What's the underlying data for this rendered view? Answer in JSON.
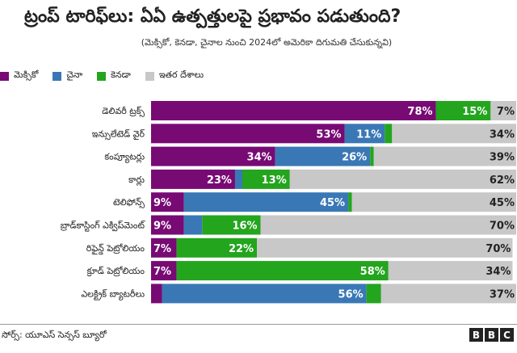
{
  "chart_data": {
    "type": "bar",
    "stacked": true,
    "orientation": "horizontal",
    "title": "ట్రంప్ టారిఫ్‌లు: ఏఏ ఉత్పత్తులపై ప్రభావం పడుతుంది?",
    "subtitle": "(మెక్సికో, కెనడా, చైనాల నుంచి 2024లో అమెరికా దిగుమతి చేసుకున్నవి)",
    "xlim": [
      0,
      100
    ],
    "categories": [
      "డెలివరీ ట్రక్స్",
      "ఇన్సులేటెడ్ వైర్",
      "కంప్యూటర్లు",
      "కార్లు",
      "టెలిఫోన్స్",
      "బ్రాడ్‌కాస్టింగ్ ఎక్విప్‌మెంట్",
      "రిఫైన్డ్ పెట్రోలియం",
      "క్రూడ్ పెట్రోలియం",
      "ఎలక్ట్రిక్ బ్యాటరీలు"
    ],
    "series": [
      {
        "name": "మెక్సికో",
        "color": "#780a74",
        "values": [
          78,
          53,
          34,
          23,
          9,
          9,
          7,
          7,
          3
        ]
      },
      {
        "name": "చైనా",
        "color": "#3a78b5",
        "values": [
          0,
          11,
          26,
          2,
          45,
          5,
          0,
          0,
          56
        ]
      },
      {
        "name": "కెనడా",
        "color": "#23a51e",
        "values": [
          15,
          2,
          1,
          13,
          1,
          16,
          22,
          58,
          4
        ]
      },
      {
        "name": "ఇతర దేశాలు",
        "color": "#c8c8c8",
        "values": [
          7,
          34,
          39,
          62,
          45,
          70,
          70,
          34,
          37
        ]
      }
    ],
    "data_labels": [
      [
        "78%",
        "",
        "15%",
        "7%"
      ],
      [
        "53%",
        "11%",
        "",
        "34%"
      ],
      [
        "34%",
        "26%",
        "",
        "39%"
      ],
      [
        "23%",
        "",
        "13%",
        "62%"
      ],
      [
        "9%",
        "45%",
        "",
        "45%"
      ],
      [
        "9%",
        "",
        "16%",
        "70%"
      ],
      [
        "7%",
        "",
        "22%",
        "70%"
      ],
      [
        "7%",
        "",
        "58%",
        "34%"
      ],
      [
        "",
        "56%",
        "",
        "37%"
      ]
    ],
    "legend": "top-left"
  },
  "source": "సోర్స్: యూఎస్ సెన్సస్ బ్యూరో",
  "brand": {
    "letters": [
      "B",
      "B",
      "C"
    ]
  }
}
